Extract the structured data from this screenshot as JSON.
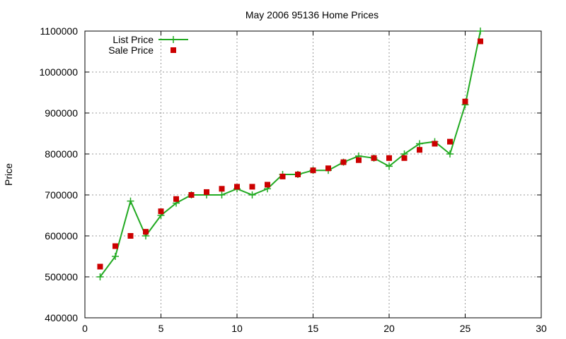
{
  "chart_data": {
    "type": "scatter",
    "title": "May 2006 95136 Home Prices",
    "xlabel": "",
    "ylabel": "Price",
    "xlim": [
      0,
      30
    ],
    "ylim": [
      400000,
      1100000
    ],
    "x_ticks": [
      "0",
      "5",
      "10",
      "15",
      "20",
      "25",
      "30"
    ],
    "y_ticks": [
      "400000",
      "500000",
      "600000",
      "700000",
      "800000",
      "900000",
      "1000000",
      "1100000"
    ],
    "grid": true,
    "legend_position": "top-left",
    "series": [
      {
        "name": "List Price",
        "style": "linespoints",
        "color": "#22aa22",
        "x": [
          1,
          2,
          3,
          4,
          5,
          6,
          7,
          8,
          9,
          10,
          11,
          12,
          13,
          14,
          15,
          16,
          17,
          18,
          19,
          20,
          21,
          22,
          23,
          24,
          25,
          26
        ],
        "y": [
          500000,
          550000,
          685000,
          600000,
          650000,
          680000,
          700000,
          700000,
          700000,
          715000,
          700000,
          715000,
          750000,
          750000,
          760000,
          760000,
          780000,
          795000,
          790000,
          770000,
          800000,
          825000,
          830000,
          800000,
          920000,
          1100000
        ]
      },
      {
        "name": "Sale Price",
        "style": "points",
        "color": "#cc0000",
        "x": [
          1,
          2,
          3,
          4,
          5,
          6,
          7,
          8,
          9,
          10,
          11,
          12,
          13,
          14,
          15,
          16,
          17,
          18,
          19,
          20,
          21,
          22,
          23,
          24,
          25,
          26
        ],
        "y": [
          525000,
          575000,
          600000,
          610000,
          660000,
          690000,
          700000,
          707000,
          715000,
          720000,
          720000,
          725000,
          745000,
          750000,
          760000,
          765000,
          780000,
          785000,
          790000,
          790000,
          790000,
          810000,
          825000,
          830000,
          928000,
          1075000
        ]
      }
    ]
  }
}
